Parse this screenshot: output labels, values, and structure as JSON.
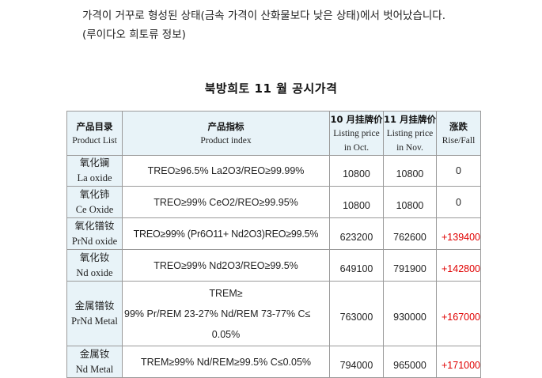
{
  "intro": {
    "line1": "가격이 거꾸로 형성된 상태(금속 가격이 산화물보다 낮은 상태)에서 벗어났습니다.",
    "line2": "(루이다오 희토류 정보)"
  },
  "title": "북방희토 11 월 공시가격",
  "table": {
    "headers": {
      "product_zh": "产品目录",
      "product_en": "Product List",
      "index_zh": "产品指标",
      "index_en": "Product index",
      "oct_zh": "10 月挂牌价",
      "oct_en1": "Listing price",
      "oct_en2": "in Oct.",
      "nov_zh": "11 月挂牌价",
      "nov_en1": "Listing price",
      "nov_en2": "in Nov.",
      "change_zh": "涨跌",
      "change_en": "Rise/Fall"
    },
    "rows": [
      {
        "name_zh": "氧化镧",
        "name_en": "La oxide",
        "index": "TREO≥96.5%  La2O3/REO≥99.99%",
        "oct": "10800",
        "nov": "10800",
        "change": "0"
      },
      {
        "name_zh": "氧化铈",
        "name_en": "Ce Oxide",
        "index": "TREO≥99%   CeO2/REO≥99.95%",
        "oct": "10800",
        "nov": "10800",
        "change": "0"
      },
      {
        "name_zh": "氧化镨钕",
        "name_en": "PrNd oxide",
        "index": "TREO≥99%  (Pr6O11+ Nd2O3)REO≥99.5%",
        "oct": "623200",
        "nov": "762600",
        "change": "+139400"
      },
      {
        "name_zh": "氧化钕",
        "name_en": "Nd oxide",
        "index": "TREO≥99%  Nd2O3/REO≥99.5%",
        "oct": "649100",
        "nov": "791900",
        "change": "+142800"
      },
      {
        "name_zh": "金属镨钕",
        "name_en": "PrNd Metal",
        "index_l1": "TREM≥",
        "index_l2": "99%  Pr/REM 23-27%   Nd/REM 73-77%   C≤",
        "index_l3": "0.05%",
        "oct": "763000",
        "nov": "930000",
        "change": "+167000"
      },
      {
        "name_zh": "金属钕",
        "name_en": "Nd Metal",
        "index": "TREM≥99%  Nd/REM≥99.5%  C≤0.05%",
        "oct": "794000",
        "nov": "965000",
        "change": "+171000"
      }
    ]
  },
  "colors": {
    "header_bg": "#e8f3f8",
    "rise_text": "#e00000",
    "border": "#9a9a9a"
  }
}
